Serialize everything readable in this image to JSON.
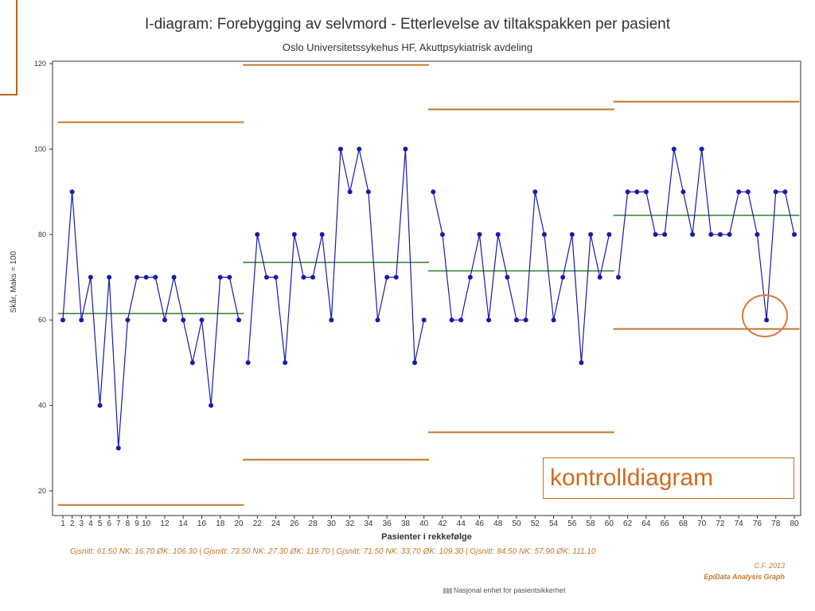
{
  "title": "I-diagram: Forebygging av selvmord - Etterlevelse av tiltakspakken per pasient",
  "subtitle": "Oslo Universitetssykehus HF, Akuttpsykiatrisk avdeling",
  "footer_stats": "Gjsnitt: 61.50 NK: 16.70 ØK: 106.30 |   Gjsnitt: 73.50 NK: 27.30 ØK: 119.70 |   Gjsnitt: 71.50 NK: 33.70 ØK: 109.30 |   Gjsnitt: 84.50 NK: 57.90 ØK: 111.10",
  "credit_line1": "C.F. 2013",
  "credit_line2": "EpiData Analysis Graph",
  "source_note": "Nasjonal enhet for pasientsikkerhet",
  "annotation_label": "kontrolldiagram",
  "colors": {
    "series": "#1a1aa8",
    "center_line": "#2e7d32",
    "limit_line": "#c0772a",
    "annotation": "#d2691e"
  },
  "chart_data": {
    "type": "line",
    "title": "I-diagram: Forebygging av selvmord - Etterlevelse av tiltakspakken per pasient",
    "subtitle": "Oslo Universitetssykehus HF, Akuttpsykiatrisk avdeling",
    "xlabel": "Pasienter i rekkefølge",
    "ylabel": "Skår, Maks = 100",
    "xlim": [
      1,
      80
    ],
    "ylim": [
      20,
      120
    ],
    "x_ticks": [
      1,
      2,
      3,
      4,
      5,
      6,
      7,
      8,
      9,
      10,
      12,
      14,
      16,
      18,
      20,
      22,
      24,
      26,
      28,
      30,
      32,
      34,
      36,
      38,
      40,
      42,
      44,
      46,
      48,
      50,
      52,
      54,
      56,
      58,
      60,
      62,
      64,
      66,
      68,
      70,
      72,
      74,
      76,
      78,
      80
    ],
    "y_ticks": [
      20,
      40,
      60,
      80,
      100,
      120
    ],
    "grid": false,
    "series": [
      {
        "x": [
          1,
          2,
          3,
          4,
          5,
          6,
          7,
          8,
          9,
          10,
          11,
          12,
          13,
          14,
          15,
          16,
          17,
          18,
          19,
          20,
          21,
          22,
          23,
          24,
          25,
          26,
          27,
          28,
          29,
          30,
          31,
          32,
          33,
          34,
          35,
          36,
          37,
          38,
          39,
          40,
          41,
          42,
          43,
          44,
          45,
          46,
          47,
          48,
          49,
          50,
          51,
          52,
          53,
          54,
          55,
          56,
          57,
          58,
          59,
          60,
          61,
          62,
          63,
          64,
          65,
          66,
          67,
          68,
          69,
          70,
          71,
          72,
          73,
          74,
          75,
          76,
          77,
          78,
          79,
          80
        ],
        "y": [
          60,
          90,
          60,
          70,
          40,
          70,
          30,
          60,
          70,
          70,
          70,
          60,
          70,
          60,
          50,
          60,
          40,
          70,
          70,
          60,
          50,
          80,
          70,
          70,
          50,
          80,
          70,
          70,
          80,
          60,
          100,
          90,
          100,
          90,
          60,
          70,
          70,
          100,
          50,
          60,
          90,
          80,
          60,
          60,
          70,
          80,
          60,
          80,
          70,
          60,
          60,
          90,
          80,
          60,
          70,
          80,
          50,
          80,
          70,
          80,
          70,
          90,
          90,
          90,
          80,
          80,
          100,
          90,
          80,
          100,
          80,
          80,
          80,
          90,
          90,
          80,
          60,
          90,
          90,
          80
        ]
      }
    ],
    "segments": [
      {
        "x_start": 1,
        "x_end": 20,
        "mean": 61.5,
        "lcl": 16.7,
        "ucl": 106.3
      },
      {
        "x_start": 21,
        "x_end": 40,
        "mean": 73.5,
        "lcl": 27.3,
        "ucl": 119.7
      },
      {
        "x_start": 41,
        "x_end": 60,
        "mean": 71.5,
        "lcl": 33.7,
        "ucl": 109.3
      },
      {
        "x_start": 61,
        "x_end": 80,
        "mean": 84.5,
        "lcl": 57.9,
        "ucl": 111.1
      }
    ],
    "highlighted_point": {
      "x": 77,
      "y": 60
    }
  }
}
